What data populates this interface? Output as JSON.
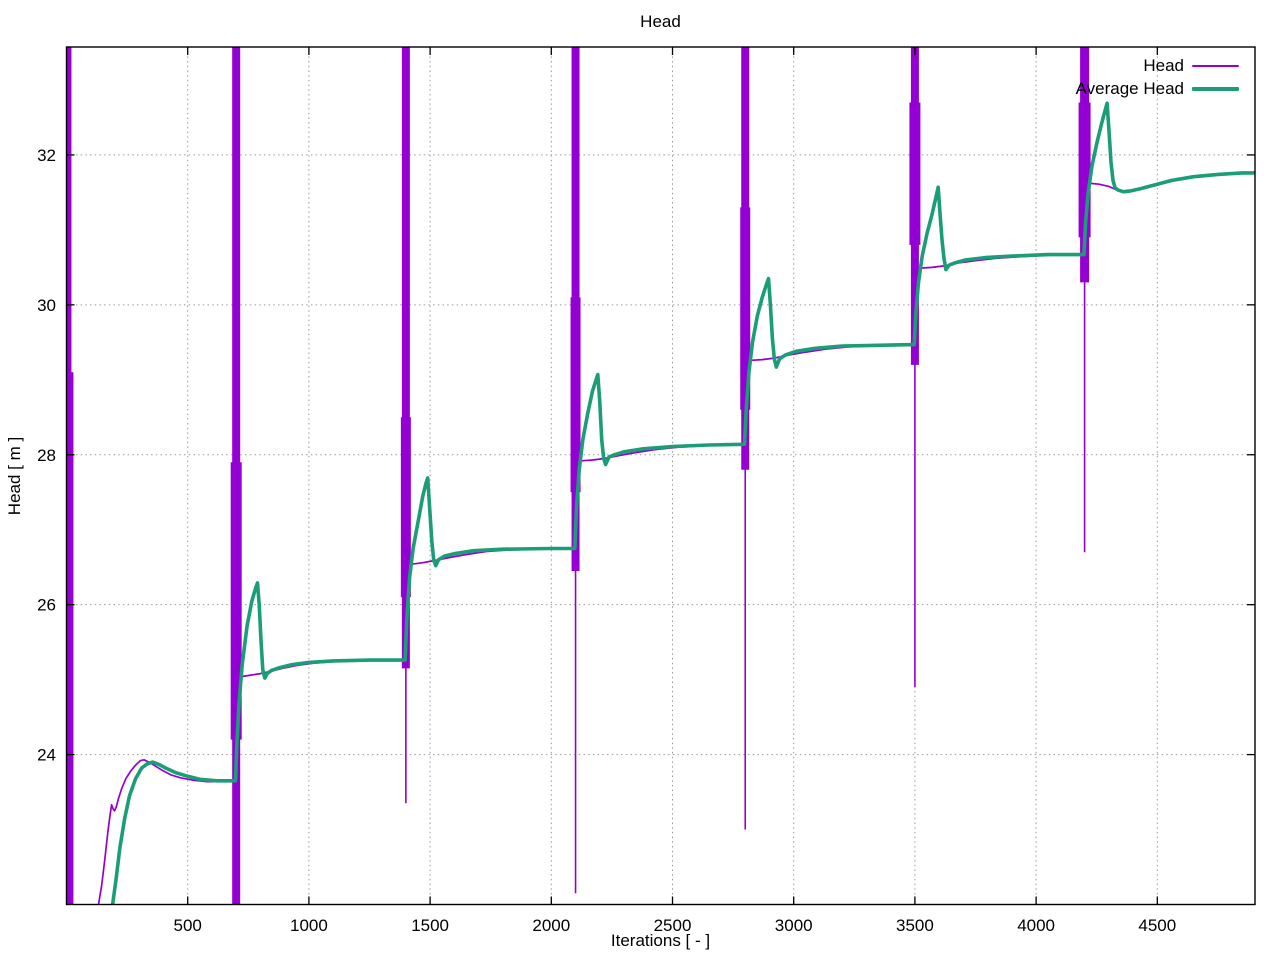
{
  "chart_data": {
    "type": "line",
    "title": "Head",
    "xlabel": "Iterations [ - ]",
    "ylabel": "Head [ m ]",
    "xlim": [
      0,
      4903
    ],
    "ylim": [
      22.0,
      33.44
    ],
    "xticks": [
      500,
      1000,
      1500,
      2000,
      2500,
      3000,
      3500,
      4000,
      4500
    ],
    "yticks": [
      24,
      26,
      28,
      30,
      32
    ],
    "grid": "dotted",
    "legend_position": "top-right-inside",
    "colors": {
      "head": "#9400d3",
      "average": "#1b9e77",
      "grid": "#9a9a9a",
      "border": "#000000",
      "background": "#ffffff"
    },
    "legend": [
      {
        "label": "Head",
        "color_key": "head",
        "sample_thickness": 2
      },
      {
        "label": "Average Head",
        "color_key": "average",
        "sample_thickness": 4
      }
    ],
    "series": [
      {
        "name": "Head",
        "color_key": "head",
        "line_width": 1.7,
        "initial_spikes": [
          {
            "x": 6,
            "top": 33.44,
            "bottom": 22.0,
            "w": 2.2
          },
          {
            "x": 15,
            "top": 33.44,
            "bottom": 22.0,
            "w": 2.6
          },
          {
            "x": 24,
            "top": 29.1,
            "bottom": 22.0,
            "w": 2.2
          }
        ],
        "spikes": [
          {
            "x": 700,
            "top": 33.44,
            "thick_bottom": 22.0,
            "thin_bottom": 22.0,
            "thick_w": 8,
            "bulge": [
              27.9,
              24.2,
              11
            ]
          },
          {
            "x": 1400,
            "top": 33.44,
            "thick_bottom": 25.15,
            "thin_bottom": 23.35,
            "thick_w": 8,
            "bulge": [
              28.5,
              26.1,
              10
            ]
          },
          {
            "x": 2100,
            "top": 33.44,
            "thick_bottom": 26.45,
            "thin_bottom": 22.15,
            "thick_w": 8,
            "bulge": [
              30.1,
              27.5,
              10
            ]
          },
          {
            "x": 2800,
            "top": 33.44,
            "thick_bottom": 27.8,
            "thin_bottom": 23.0,
            "thick_w": 8,
            "bulge": [
              31.3,
              28.6,
              10
            ]
          },
          {
            "x": 3500,
            "top": 33.44,
            "thick_bottom": 29.2,
            "thin_bottom": 24.9,
            "thick_w": 8,
            "bulge": [
              32.7,
              30.8,
              11
            ]
          },
          {
            "x": 4200,
            "top": 33.44,
            "thick_bottom": 30.3,
            "thin_bottom": 26.7,
            "thick_w": 9,
            "bulge": [
              32.7,
              30.9,
              12
            ]
          }
        ],
        "segments": [
          [
            [
              132,
              22.0
            ],
            [
              145,
              22.25
            ],
            [
              158,
              22.6
            ],
            [
              170,
              22.95
            ],
            [
              180,
              23.2
            ],
            [
              186,
              23.33
            ],
            [
              192,
              23.28
            ],
            [
              198,
              23.25
            ],
            [
              205,
              23.3
            ],
            [
              215,
              23.42
            ],
            [
              228,
              23.55
            ],
            [
              245,
              23.68
            ],
            [
              265,
              23.78
            ],
            [
              285,
              23.86
            ],
            [
              305,
              23.92
            ],
            [
              320,
              23.93
            ],
            [
              340,
              23.9
            ],
            [
              365,
              23.85
            ],
            [
              395,
              23.79
            ],
            [
              430,
              23.73
            ],
            [
              470,
              23.69
            ],
            [
              520,
              23.66
            ],
            [
              580,
              23.64
            ],
            [
              640,
              23.64
            ],
            [
              686,
              23.64
            ]
          ],
          [
            [
              722,
              25.04
            ],
            [
              760,
              25.06
            ],
            [
              800,
              25.08
            ],
            [
              840,
              25.11
            ],
            [
              890,
              25.15
            ],
            [
              950,
              25.19
            ],
            [
              1020,
              25.22
            ],
            [
              1100,
              25.24
            ],
            [
              1200,
              25.25
            ],
            [
              1320,
              25.26
            ],
            [
              1390,
              25.26
            ]
          ],
          [
            [
              1424,
              26.54
            ],
            [
              1470,
              26.56
            ],
            [
              1520,
              26.59
            ],
            [
              1580,
              26.63
            ],
            [
              1650,
              26.67
            ],
            [
              1730,
              26.71
            ],
            [
              1820,
              26.73
            ],
            [
              1950,
              26.74
            ],
            [
              2088,
              26.75
            ]
          ],
          [
            [
              2124,
              27.92
            ],
            [
              2170,
              27.93
            ],
            [
              2220,
              27.95
            ],
            [
              2280,
              27.99
            ],
            [
              2350,
              28.03
            ],
            [
              2430,
              28.07
            ],
            [
              2520,
              28.1
            ],
            [
              2630,
              28.12
            ],
            [
              2750,
              28.14
            ],
            [
              2792,
              28.14
            ]
          ],
          [
            [
              2824,
              29.26
            ],
            [
              2870,
              29.27
            ],
            [
              2920,
              29.29
            ],
            [
              2980,
              29.33
            ],
            [
              3050,
              29.37
            ],
            [
              3130,
              29.41
            ],
            [
              3230,
              29.44
            ],
            [
              3350,
              29.46
            ],
            [
              3492,
              29.47
            ]
          ],
          [
            [
              3524,
              30.49
            ],
            [
              3570,
              30.5
            ],
            [
              3620,
              30.52
            ],
            [
              3680,
              30.56
            ],
            [
              3750,
              30.59
            ],
            [
              3830,
              30.62
            ],
            [
              3920,
              30.64
            ],
            [
              4030,
              30.66
            ],
            [
              4192,
              30.67
            ]
          ],
          [
            [
              4224,
              31.62
            ],
            [
              4260,
              31.61
            ],
            [
              4300,
              31.58
            ],
            [
              4340,
              31.52
            ],
            [
              4370,
              31.5
            ],
            [
              4410,
              31.53
            ],
            [
              4460,
              31.58
            ],
            [
              4520,
              31.63
            ],
            [
              4590,
              31.68
            ],
            [
              4670,
              31.72
            ],
            [
              4760,
              31.74
            ],
            [
              4860,
              31.76
            ],
            [
              4903,
              31.76
            ]
          ]
        ]
      },
      {
        "name": "Average Head",
        "color_key": "average",
        "line_width": 3.6,
        "points": [
          [
            190,
            22.0
          ],
          [
            205,
            22.35
          ],
          [
            220,
            22.75
          ],
          [
            240,
            23.15
          ],
          [
            260,
            23.45
          ],
          [
            285,
            23.68
          ],
          [
            310,
            23.82
          ],
          [
            335,
            23.88
          ],
          [
            355,
            23.9
          ],
          [
            380,
            23.87
          ],
          [
            410,
            23.82
          ],
          [
            450,
            23.76
          ],
          [
            500,
            23.71
          ],
          [
            550,
            23.67
          ],
          [
            620,
            23.65
          ],
          [
            697,
            23.65
          ],
          [
            702,
            24.1
          ],
          [
            712,
            24.7
          ],
          [
            725,
            25.2
          ],
          [
            745,
            25.72
          ],
          [
            765,
            26.05
          ],
          [
            780,
            26.22
          ],
          [
            788,
            26.29
          ],
          [
            795,
            26.0
          ],
          [
            803,
            25.5
          ],
          [
            810,
            25.13
          ],
          [
            818,
            25.02
          ],
          [
            828,
            25.08
          ],
          [
            845,
            25.12
          ],
          [
            880,
            25.16
          ],
          [
            930,
            25.2
          ],
          [
            1000,
            25.23
          ],
          [
            1100,
            25.25
          ],
          [
            1250,
            25.26
          ],
          [
            1397,
            25.26
          ],
          [
            1404,
            25.8
          ],
          [
            1415,
            26.35
          ],
          [
            1430,
            26.75
          ],
          [
            1450,
            27.1
          ],
          [
            1470,
            27.45
          ],
          [
            1483,
            27.62
          ],
          [
            1490,
            27.69
          ],
          [
            1498,
            27.3
          ],
          [
            1507,
            26.85
          ],
          [
            1515,
            26.6
          ],
          [
            1523,
            26.52
          ],
          [
            1535,
            26.6
          ],
          [
            1560,
            26.65
          ],
          [
            1600,
            26.68
          ],
          [
            1680,
            26.72
          ],
          [
            1800,
            26.74
          ],
          [
            2000,
            26.75
          ],
          [
            2097,
            26.75
          ],
          [
            2104,
            27.3
          ],
          [
            2115,
            27.8
          ],
          [
            2130,
            28.2
          ],
          [
            2150,
            28.55
          ],
          [
            2170,
            28.85
          ],
          [
            2185,
            29.0
          ],
          [
            2192,
            29.07
          ],
          [
            2200,
            28.7
          ],
          [
            2208,
            28.2
          ],
          [
            2216,
            27.95
          ],
          [
            2224,
            27.87
          ],
          [
            2238,
            27.97
          ],
          [
            2260,
            28.0
          ],
          [
            2300,
            28.04
          ],
          [
            2380,
            28.08
          ],
          [
            2500,
            28.11
          ],
          [
            2650,
            28.13
          ],
          [
            2797,
            28.14
          ],
          [
            2804,
            28.6
          ],
          [
            2815,
            29.1
          ],
          [
            2830,
            29.5
          ],
          [
            2850,
            29.85
          ],
          [
            2870,
            30.1
          ],
          [
            2888,
            30.28
          ],
          [
            2896,
            30.35
          ],
          [
            2904,
            30.0
          ],
          [
            2912,
            29.55
          ],
          [
            2920,
            29.28
          ],
          [
            2928,
            29.17
          ],
          [
            2942,
            29.28
          ],
          [
            2965,
            29.33
          ],
          [
            3010,
            29.38
          ],
          [
            3090,
            29.42
          ],
          [
            3200,
            29.45
          ],
          [
            3350,
            29.46
          ],
          [
            3497,
            29.47
          ],
          [
            3504,
            29.9
          ],
          [
            3515,
            30.3
          ],
          [
            3530,
            30.65
          ],
          [
            3550,
            30.95
          ],
          [
            3570,
            31.2
          ],
          [
            3588,
            31.45
          ],
          [
            3596,
            31.57
          ],
          [
            3604,
            31.2
          ],
          [
            3612,
            30.85
          ],
          [
            3620,
            30.62
          ],
          [
            3628,
            30.47
          ],
          [
            3642,
            30.53
          ],
          [
            3665,
            30.56
          ],
          [
            3710,
            30.6
          ],
          [
            3790,
            30.63
          ],
          [
            3900,
            30.65
          ],
          [
            4050,
            30.67
          ],
          [
            4197,
            30.67
          ],
          [
            4204,
            31.1
          ],
          [
            4215,
            31.5
          ],
          [
            4230,
            31.85
          ],
          [
            4250,
            32.15
          ],
          [
            4270,
            32.42
          ],
          [
            4285,
            32.6
          ],
          [
            4293,
            32.69
          ],
          [
            4301,
            32.3
          ],
          [
            4309,
            31.9
          ],
          [
            4317,
            31.66
          ],
          [
            4326,
            31.56
          ],
          [
            4340,
            31.53
          ],
          [
            4360,
            31.51
          ],
          [
            4390,
            31.52
          ],
          [
            4430,
            31.55
          ],
          [
            4490,
            31.6
          ],
          [
            4560,
            31.66
          ],
          [
            4650,
            31.71
          ],
          [
            4750,
            31.74
          ],
          [
            4850,
            31.76
          ],
          [
            4903,
            31.76
          ]
        ]
      }
    ]
  }
}
